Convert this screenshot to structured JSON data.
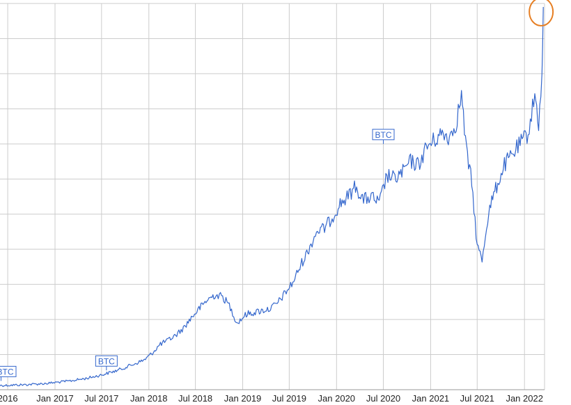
{
  "chart_data": {
    "type": "line",
    "title": "",
    "xlabel": "",
    "ylabel": "",
    "x_tick_labels": [
      "2016",
      "Jan 2017",
      "Jul 2017",
      "Jan 2018",
      "Jul 2018",
      "Jan 2019",
      "Jul 2019",
      "Jan 2020",
      "Jul 2020",
      "Jan 2021",
      "Jul 2021",
      "Jan 2022"
    ],
    "x_tick_dates": [
      "2016-07-01",
      "2017-01-01",
      "2017-07-01",
      "2018-01-01",
      "2018-07-01",
      "2019-01-01",
      "2019-07-01",
      "2020-01-01",
      "2020-07-01",
      "2021-01-01",
      "2021-07-01",
      "2022-01-01"
    ],
    "xlim": [
      "2016-06-01",
      "2022-03-20"
    ],
    "ylim": [
      0,
      11
    ],
    "y_gridlines": [
      0,
      1,
      2,
      3,
      4,
      5,
      6,
      7,
      8,
      9,
      10,
      11
    ],
    "y_tick_labels_visible": false,
    "grid": true,
    "line_color": "#3366cc",
    "highlight_circle_color": "#e67e22",
    "series": [
      {
        "values": [
          [
            "2016-06-01",
            0.12
          ],
          [
            "2016-09-01",
            0.14
          ],
          [
            "2016-12-01",
            0.18
          ],
          [
            "2017-03-01",
            0.25
          ],
          [
            "2017-05-01",
            0.32
          ],
          [
            "2017-07-01",
            0.42
          ],
          [
            "2017-09-01",
            0.55
          ],
          [
            "2017-11-01",
            0.72
          ],
          [
            "2017-12-15",
            0.85
          ],
          [
            "2018-01-15",
            1.05
          ],
          [
            "2018-02-15",
            1.3
          ],
          [
            "2018-03-15",
            1.4
          ],
          [
            "2018-04-15",
            1.55
          ],
          [
            "2018-05-15",
            1.75
          ],
          [
            "2018-06-15",
            2.05
          ],
          [
            "2018-07-15",
            2.3
          ],
          [
            "2018-08-15",
            2.55
          ],
          [
            "2018-09-15",
            2.7
          ],
          [
            "2018-10-15",
            2.65
          ],
          [
            "2018-11-10",
            2.4
          ],
          [
            "2018-12-10",
            1.9
          ],
          [
            "2019-01-15",
            2.15
          ],
          [
            "2019-02-15",
            2.2
          ],
          [
            "2019-03-15",
            2.25
          ],
          [
            "2019-04-15",
            2.3
          ],
          [
            "2019-05-15",
            2.45
          ],
          [
            "2019-06-15",
            2.75
          ],
          [
            "2019-07-15",
            3.05
          ],
          [
            "2019-08-15",
            3.55
          ],
          [
            "2019-09-15",
            4.0
          ],
          [
            "2019-10-15",
            4.5
          ],
          [
            "2019-11-15",
            4.6
          ],
          [
            "2019-12-15",
            4.9
          ],
          [
            "2020-01-15",
            5.3
          ],
          [
            "2020-02-15",
            5.5
          ],
          [
            "2020-03-15",
            5.8
          ],
          [
            "2020-04-15",
            5.4
          ],
          [
            "2020-05-15",
            5.5
          ],
          [
            "2020-06-15",
            5.3
          ],
          [
            "2020-07-15",
            6.1
          ],
          [
            "2020-08-15",
            6.0
          ],
          [
            "2020-09-15",
            6.2
          ],
          [
            "2020-10-15",
            6.5
          ],
          [
            "2020-11-15",
            6.4
          ],
          [
            "2020-12-15",
            6.9
          ],
          [
            "2021-01-15",
            7.1
          ],
          [
            "2021-02-15",
            7.3
          ],
          [
            "2021-03-15",
            7.2
          ],
          [
            "2021-04-10",
            7.6
          ],
          [
            "2021-05-01",
            8.4
          ],
          [
            "2021-05-20",
            6.8
          ],
          [
            "2021-06-10",
            5.9
          ],
          [
            "2021-07-01",
            4.1
          ],
          [
            "2021-07-20",
            3.7
          ],
          [
            "2021-08-15",
            5.1
          ],
          [
            "2021-09-15",
            5.8
          ],
          [
            "2021-10-15",
            6.4
          ],
          [
            "2021-11-15",
            6.7
          ],
          [
            "2021-12-15",
            7.0
          ],
          [
            "2022-01-15",
            7.3
          ],
          [
            "2022-02-10",
            8.4
          ],
          [
            "2022-02-25",
            7.6
          ],
          [
            "2022-03-10",
            8.8
          ],
          [
            "2022-03-15",
            10.9
          ]
        ]
      }
    ],
    "annotations": [
      {
        "label": "BTC",
        "date": "2016-06-05",
        "value": 0.25
      },
      {
        "label": "BTC",
        "date": "2017-07-20",
        "value": 0.55
      },
      {
        "label": "BTC",
        "date": "2020-07-01",
        "value": 7.0
      }
    ],
    "highlight": {
      "date": "2022-03-15",
      "value": 10.9
    }
  }
}
